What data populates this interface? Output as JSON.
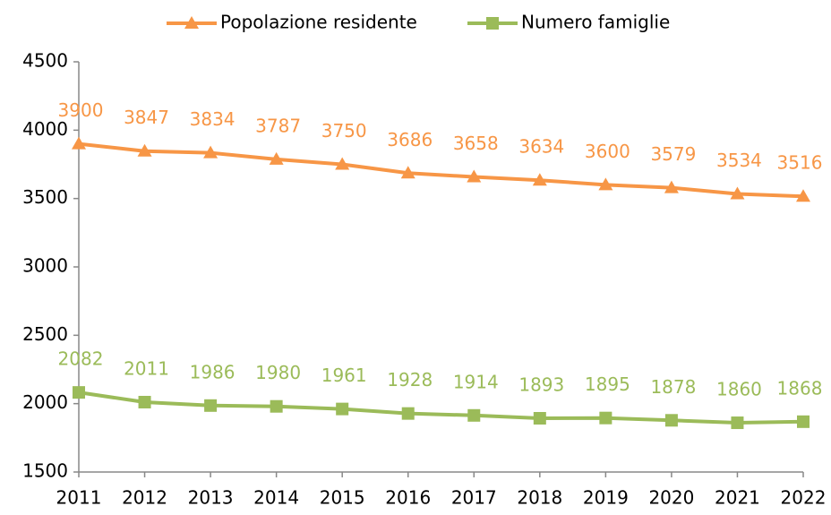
{
  "chart_data": {
    "type": "line",
    "categories": [
      "2011",
      "2012",
      "2013",
      "2014",
      "2015",
      "2016",
      "2017",
      "2018",
      "2019",
      "2020",
      "2021",
      "2022"
    ],
    "series": [
      {
        "name": "Popolazione residente",
        "color": "#f79646",
        "marker": "triangle",
        "values": [
          3900,
          3847,
          3834,
          3787,
          3750,
          3686,
          3658,
          3634,
          3600,
          3579,
          3534,
          3516
        ]
      },
      {
        "name": "Numero famiglie",
        "color": "#9bbb59",
        "marker": "square",
        "values": [
          2082,
          2011,
          1986,
          1980,
          1961,
          1928,
          1914,
          1893,
          1895,
          1878,
          1860,
          1868
        ]
      }
    ],
    "ylim": [
      1500,
      4500
    ],
    "yticks": [
      1500,
      2000,
      2500,
      3000,
      3500,
      4000,
      4500
    ],
    "grid": false,
    "legend": "top",
    "data_labels": true
  }
}
